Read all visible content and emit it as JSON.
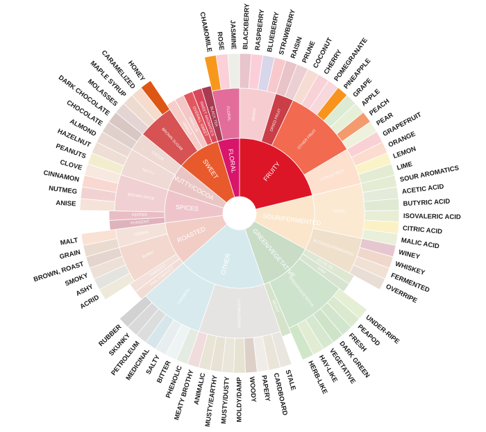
{
  "wheel": {
    "start_offset_deg": -90,
    "categories": [
      {
        "name": "FRUITY",
        "color": "#dd1627",
        "children": [
          {
            "name": "BERRY",
            "color": "#f7ccd0",
            "leaves": [
              {
                "name": "BLACKBERRY",
                "color": "#e8c4cc"
              },
              {
                "name": "RASPBERRY",
                "color": "#fbcfd9"
              },
              {
                "name": "BLUEBERRY",
                "color": "#d7d6ea"
              },
              {
                "name": "STRAWBERRY",
                "color": "#f8c9cc"
              }
            ]
          },
          {
            "name": "DRIED FRUIT",
            "color": "#c93e47",
            "leaves": [
              {
                "name": "RAISIN",
                "color": "#e8c3c7"
              },
              {
                "name": "PRUNE",
                "color": "#eccfd2"
              }
            ]
          },
          {
            "name": "OTHER FRUIT",
            "color": "#f26a4f",
            "leaves": [
              {
                "name": "COCONUT",
                "color": "#f6dcd2"
              },
              {
                "name": "CHERRY",
                "color": "#f8d2d6"
              },
              {
                "name": "POMEGRANATE",
                "color": "#f7d8dc"
              },
              {
                "name": "PINEAPPLE",
                "color": "#f8941d"
              },
              {
                "name": "GRAPE",
                "color": "#dcebd3"
              },
              {
                "name": "APPLE",
                "color": "#e6efd8"
              },
              {
                "name": "PEACH",
                "color": "#f39b6f"
              },
              {
                "name": "PEAR",
                "color": "#eef2dc"
              }
            ]
          },
          {
            "name": "CITRUS FRUIT",
            "color": "#fde0ce",
            "leaves": [
              {
                "name": "GRAPEFRUIT",
                "color": "#f9d1d4"
              },
              {
                "name": "ORANGE",
                "color": "#fbdccf"
              },
              {
                "name": "LEMON",
                "color": "#fbf3c8"
              },
              {
                "name": "LIME",
                "color": "#e3ecd3"
              }
            ]
          }
        ]
      },
      {
        "name": "SOUR/FERMENTED",
        "color": "#fbe6cc",
        "children": [
          {
            "name": "SOUR",
            "color": "#fbe9d2",
            "leaves": [
              {
                "name": "SOUR AROMATICS",
                "color": "#e5ecd4"
              },
              {
                "name": "ACETIC ACID",
                "color": "#e4ebda"
              },
              {
                "name": "BUTYRIC ACID",
                "color": "#dfe9d3"
              },
              {
                "name": "ISOVALERIC ACID",
                "color": "#e8eed6"
              },
              {
                "name": "CITRIC ACID",
                "color": "#fbf1c4"
              },
              {
                "name": "MALIC ACID",
                "color": "#e9efd9"
              }
            ]
          },
          {
            "name": "ALCOHOL/FERMENTED",
            "color": "#efe0cc",
            "leaves": [
              {
                "name": "WINEY",
                "color": "#e6c7cf"
              },
              {
                "name": "WHISKEY",
                "color": "#f0d7cc"
              },
              {
                "name": "FERMENTED",
                "color": "#f1e1d4"
              },
              {
                "name": "OVERRIPE",
                "color": "#e9ded6"
              }
            ]
          }
        ]
      },
      {
        "name": "GREEN/VEGETATIVE",
        "color": "#c8dcc6",
        "children": [
          {
            "name": "OLIVE OIL",
            "color": "#dde7d2",
            "leaves": []
          },
          {
            "name": "RAW",
            "color": "#d7e4cf",
            "leaves": []
          },
          {
            "name": "GREEN/VEGETATIVE",
            "color": "#cde3cc",
            "leaves": [
              {
                "name": "UNDER-RIPE",
                "color": "#e5efd4"
              },
              {
                "name": "PEAPOD",
                "color": "#dbe9cf"
              },
              {
                "name": "FRESH",
                "color": "#d2e6cd"
              },
              {
                "name": "DARK GREEN",
                "color": "#cfe3c8"
              },
              {
                "name": "VEGETATIVE",
                "color": "#d7e8d0"
              },
              {
                "name": "HAY-LIKE",
                "color": "#e2ecd2"
              },
              {
                "name": "HERB-LIKE",
                "color": "#cfe6c9"
              }
            ]
          },
          {
            "name": "BEANY",
            "color": "#d5e3cb",
            "leaves": []
          }
        ]
      },
      {
        "name": "OTHER",
        "color": "#d6eaee",
        "children": [
          {
            "name": "PAPERY/MUSTY",
            "color": "#e6e4e2",
            "leaves": [
              {
                "name": "STALE",
                "color": "#e9e6e0"
              },
              {
                "name": "CARDBOARD",
                "color": "#eae5d8"
              },
              {
                "name": "PAPERY",
                "color": "#f0ede8"
              },
              {
                "name": "WOODY",
                "color": "#ddd0c8"
              },
              {
                "name": "MOLDY/DAMP",
                "color": "#e6e3d3"
              },
              {
                "name": "MUSTY/DUSTY",
                "color": "#e9e6da"
              },
              {
                "name": "MUSTY/EARTHY",
                "color": "#e8e2d4"
              },
              {
                "name": "ANIMALIC",
                "color": "#e8e4d6"
              },
              {
                "name": "MEATY BROTHY",
                "color": "#f0dcdc"
              }
            ]
          },
          {
            "name": "CHEMICAL",
            "color": "#d8eaee",
            "leaves": [
              {
                "name": "PHENOLIC",
                "color": "#e3ebe2"
              },
              {
                "name": "BITTER",
                "color": "#eef4f4"
              },
              {
                "name": "SALTY",
                "color": "#e8eef0"
              },
              {
                "name": "MEDICINAL",
                "color": "#d6e6ea"
              },
              {
                "name": "PETROLEUM",
                "color": "#dcdede"
              },
              {
                "name": "SKUNKY",
                "color": "#d9d9d9"
              },
              {
                "name": "RUBBER",
                "color": "#d2d2d2"
              }
            ]
          }
        ]
      },
      {
        "name": "ROASTED",
        "color": "#f1cdc6",
        "children": [
          {
            "name": "PIPE TOBACCO",
            "color": "#f2ddd6",
            "leaves": []
          },
          {
            "name": "TOBACCO",
            "color": "#f3e0da",
            "leaves": []
          },
          {
            "name": "BURNT",
            "color": "#f2d8cf",
            "leaves": [
              {
                "name": "ACRID",
                "color": "#eee9da"
              },
              {
                "name": "ASHY",
                "color": "#e3e3e0"
              },
              {
                "name": "SMOKY",
                "color": "#ede0d6"
              },
              {
                "name": "BROWN, ROAST",
                "color": "#e4d5cf"
              }
            ]
          },
          {
            "name": "CEREAL",
            "color": "#f4e2da",
            "leaves": [
              {
                "name": "GRAIN",
                "color": "#eadbd0"
              },
              {
                "name": "MALT",
                "color": "#f9e1d3"
              }
            ]
          }
        ]
      },
      {
        "name": "SPICES",
        "color": "#eec4ca",
        "children": [
          {
            "name": "PUNGENT",
            "color": "#dfb3bc",
            "leaves": []
          },
          {
            "name": "PEPPER",
            "color": "#e8bec4",
            "leaves": []
          },
          {
            "name": "BROWN SPICE",
            "color": "#f0d0d2",
            "leaves": [
              {
                "name": "ANISE",
                "color": "#f5e2d8"
              },
              {
                "name": "NUTMEG",
                "color": "#f1d2d2"
              },
              {
                "name": "CINNAMON",
                "color": "#f8d8d0"
              },
              {
                "name": "CLOVE",
                "color": "#f7e8e0"
              }
            ]
          }
        ]
      },
      {
        "name": "NUTTY/COCOA",
        "color": "#e9c6c4",
        "children": [
          {
            "name": "NUTTY",
            "color": "#efdad6",
            "leaves": [
              {
                "name": "PEANUTS",
                "color": "#f3edd0"
              },
              {
                "name": "HAZELNUT",
                "color": "#efded6"
              },
              {
                "name": "ALMOND",
                "color": "#ead9d3"
              }
            ]
          },
          {
            "name": "COCOA",
            "color": "#eed8d2",
            "leaves": [
              {
                "name": "CHOCOLATE",
                "color": "#dfd0cc"
              },
              {
                "name": "DARK CHOCOLATE",
                "color": "#d9c7c4"
              }
            ]
          }
        ]
      },
      {
        "name": "SWEET",
        "color": "#e85a2c",
        "children": [
          {
            "name": "BROWN SUGAR",
            "color": "#d65253",
            "leaves": [
              {
                "name": "MOLASSES",
                "color": "#e4d4d4"
              },
              {
                "name": "MAPLE SYRUP",
                "color": "#eedbd0"
              },
              {
                "name": "CARAMELIZED",
                "color": "#f6dccd"
              },
              {
                "name": "HONEY",
                "color": "#dd5613"
              }
            ]
          },
          {
            "name": "VANILLA",
            "color": "#f6cdc9",
            "leaves": []
          },
          {
            "name": "VANILLIN",
            "color": "#f2c7c6",
            "leaves": []
          },
          {
            "name": "OVERALL SWEET",
            "color": "#e2575e",
            "leaves": []
          },
          {
            "name": "SWEET AROMATICS",
            "color": "#d8475c",
            "leaves": []
          }
        ]
      },
      {
        "name": "FLORAL",
        "color": "#d8156b",
        "children": [
          {
            "name": "BLACK TEA",
            "color": "#a83a52",
            "leaves": []
          },
          {
            "name": "FLORAL",
            "color": "#e26d9b",
            "leaves": [
              {
                "name": "CHAMOMILE",
                "color": "#f7981d"
              },
              {
                "name": "ROSE",
                "color": "#fbd0d8"
              },
              {
                "name": "JASMINE",
                "color": "#eeeee8"
              }
            ]
          }
        ]
      }
    ]
  }
}
